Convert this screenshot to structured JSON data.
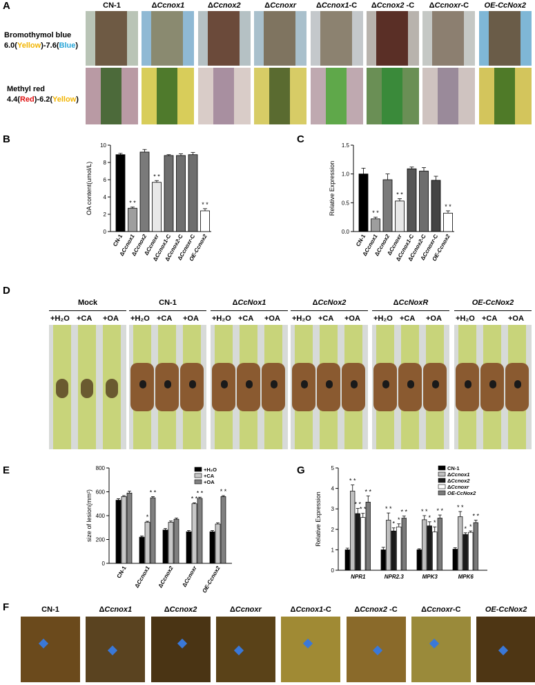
{
  "panel_A": {
    "label": "A",
    "strains": [
      {
        "pre": "",
        "it": "",
        "post": "CN-1"
      },
      {
        "pre": "Δ",
        "it": "Ccnox1",
        "post": ""
      },
      {
        "pre": "Δ",
        "it": "Ccnox2",
        "post": ""
      },
      {
        "pre": "Δ",
        "it": "Ccnoxr",
        "post": ""
      },
      {
        "pre": "Δ",
        "it": "Ccnox1",
        "post": "-C"
      },
      {
        "pre": "Δ",
        "it": "Ccnox2",
        "post": " -C"
      },
      {
        "pre": "Δ",
        "it": "Ccnoxr",
        "post": "-C"
      },
      {
        "pre": "",
        "it": "OE-CcNox2",
        "post": ""
      }
    ],
    "row1": {
      "name": "Bromothymol blue",
      "lo": "6.0(",
      "c1": "Yellow",
      "mid": ")-7.6(",
      "c2": "Blue",
      "hi": ")"
    },
    "row2": {
      "name": "Methyl red",
      "lo": "4.4(",
      "c1": "Red",
      "mid": ")-6.2(",
      "c2": "Yellow",
      "hi": ")"
    },
    "colors": {
      "yellow": "#f2b400",
      "blue": "#2aa6d8",
      "red": "#e01010"
    }
  },
  "panel_D": {
    "label": "D",
    "groups": [
      {
        "pre": "",
        "it": "",
        "post": "Mock"
      },
      {
        "pre": "",
        "it": "",
        "post": "CN-1"
      },
      {
        "pre": "Δ",
        "it": "CcNox1",
        "post": ""
      },
      {
        "pre": "Δ",
        "it": "CcNox2",
        "post": ""
      },
      {
        "pre": "Δ",
        "it": "CcNoxR",
        "post": ""
      },
      {
        "pre": "",
        "it": "OE-CcNox2",
        "post": ""
      }
    ],
    "treatments": [
      "+H₂O",
      "+CA",
      "+OA"
    ]
  },
  "panel_F": {
    "label": "F",
    "strains": [
      {
        "pre": "",
        "it": "",
        "post": "CN-1"
      },
      {
        "pre": "Δ",
        "it": "Ccnox1",
        "post": ""
      },
      {
        "pre": "Δ",
        "it": "Ccnox2",
        "post": ""
      },
      {
        "pre": "Δ",
        "it": "Ccnoxr",
        "post": ""
      },
      {
        "pre": "Δ",
        "it": "Ccnox1",
        "post": "-C"
      },
      {
        "pre": "Δ",
        "it": "Ccnox2",
        "post": " -C"
      },
      {
        "pre": "Δ",
        "it": "Ccnoxr",
        "post": "-C"
      },
      {
        "pre": "",
        "it": "OE-CcNox2",
        "post": ""
      }
    ]
  },
  "chart_data": [
    {
      "panel": "B",
      "type": "bar",
      "categories": [
        "CN-1",
        "ΔCcnox1",
        "ΔCcnox2",
        "ΔCcnoxr",
        "ΔCcnox1-C",
        "ΔCcnox2-C",
        "ΔCcnoxr-C",
        "OE-Ccnox2"
      ],
      "values": [
        8.9,
        2.7,
        9.2,
        5.7,
        8.8,
        8.8,
        8.9,
        2.4
      ],
      "errors": [
        0.15,
        0.15,
        0.3,
        0.2,
        0.1,
        0.2,
        0.25,
        0.25
      ],
      "significance": [
        "",
        "**",
        "",
        "**",
        "",
        "",
        "",
        "**"
      ],
      "bar_colors": [
        "#000000",
        "#9e9e9e",
        "#7a7a7a",
        "#e8e8e8",
        "#6e6e6e",
        "#6e6e6e",
        "#6e6e6e",
        "#ffffff"
      ],
      "ylabel": "OA content(umol/L)",
      "ylim": [
        0,
        10
      ],
      "yticks": [
        0,
        2,
        4,
        6,
        8,
        10
      ]
    },
    {
      "panel": "C",
      "type": "bar",
      "categories": [
        "CN-1",
        "ΔCcnox1",
        "ΔCcnox2",
        "ΔCcnoxr",
        "ΔCcnox1-C",
        "ΔCcnox2-C",
        "ΔCcnoxr-C",
        "OE-Ccnox2"
      ],
      "values": [
        1.0,
        0.22,
        0.9,
        0.53,
        1.09,
        1.05,
        0.89,
        0.32
      ],
      "errors": [
        0.1,
        0.03,
        0.1,
        0.04,
        0.03,
        0.06,
        0.07,
        0.04
      ],
      "significance": [
        "",
        "**",
        "",
        "**",
        "",
        "",
        "",
        "**"
      ],
      "bar_colors": [
        "#000000",
        "#9e9e9e",
        "#7a7a7a",
        "#e8e8e8",
        "#555555",
        "#6e6e6e",
        "#444444",
        "#ffffff"
      ],
      "ylabel": "Relative Expression",
      "ylim": [
        0,
        1.5
      ],
      "yticks": [
        0.0,
        0.5,
        1.0,
        1.5
      ]
    },
    {
      "panel": "E",
      "type": "bar",
      "categories": [
        "CN-1",
        "ΔCcnox1",
        "ΔCcnox2",
        "ΔCcnoxr",
        "OE-Ccnox2"
      ],
      "series": [
        {
          "name": "+H₂O",
          "values": [
            530,
            220,
            280,
            265,
            265
          ],
          "errors": [
            12,
            10,
            12,
            10,
            10
          ],
          "sig": [
            "",
            "",
            "",
            "",
            ""
          ],
          "color": "#000000"
        },
        {
          "name": "+CA",
          "values": [
            560,
            345,
            345,
            500,
            330
          ],
          "errors": [
            8,
            8,
            10,
            8,
            10
          ],
          "sig": [
            "",
            "*",
            "",
            "**",
            ""
          ],
          "color": "#c8c8c8"
        },
        {
          "name": "+OA",
          "values": [
            590,
            550,
            370,
            545,
            560
          ],
          "errors": [
            15,
            10,
            10,
            10,
            8
          ],
          "sig": [
            "",
            "**",
            "",
            "**",
            "**"
          ],
          "color": "#808080"
        }
      ],
      "ylabel": "size of lesion(mm²)",
      "ylim": [
        0,
        800
      ],
      "yticks": [
        0,
        200,
        400,
        600,
        800
      ]
    },
    {
      "panel": "G",
      "type": "bar",
      "categories": [
        "NPR1",
        "NPR2.3",
        "MPK3",
        "MPK6"
      ],
      "series": [
        {
          "name": "CN-1",
          "values": [
            1.0,
            1.0,
            1.0,
            1.03
          ],
          "errors": [
            0.08,
            0.12,
            0.05,
            0.07
          ],
          "sig": [
            "",
            "",
            "",
            ""
          ],
          "color": "#000000"
        },
        {
          "name": "ΔCcnox1",
          "values": [
            3.87,
            2.45,
            2.47,
            2.62
          ],
          "errors": [
            0.3,
            0.35,
            0.2,
            0.25
          ],
          "sig": [
            "**",
            "**",
            "**",
            "**"
          ],
          "color": "#bfbfbf"
        },
        {
          "name": "ΔCcnox2",
          "values": [
            2.77,
            1.92,
            2.17,
            1.75
          ],
          "errors": [
            0.25,
            0.15,
            0.2,
            0.08
          ],
          "sig": [
            "**",
            "*",
            "*",
            "*"
          ],
          "color": "#1a1a1a"
        },
        {
          "name": "ΔCcnoxr",
          "values": [
            2.58,
            2.12,
            1.87,
            1.85
          ],
          "errors": [
            0.2,
            0.15,
            0.25,
            0.07
          ],
          "sig": [
            "**",
            "*",
            "*",
            "*"
          ],
          "color": "#ffffff"
        },
        {
          "name": "OE-CcNox2",
          "values": [
            3.33,
            2.55,
            2.55,
            2.33
          ],
          "errors": [
            0.3,
            0.1,
            0.15,
            0.12
          ],
          "sig": [
            "**",
            "**",
            "**",
            "**"
          ],
          "color": "#7a7a7a"
        }
      ],
      "ylabel": "Relative Expression",
      "ylim": [
        0,
        5
      ],
      "yticks": [
        0,
        1,
        2,
        3,
        4,
        5
      ]
    }
  ]
}
